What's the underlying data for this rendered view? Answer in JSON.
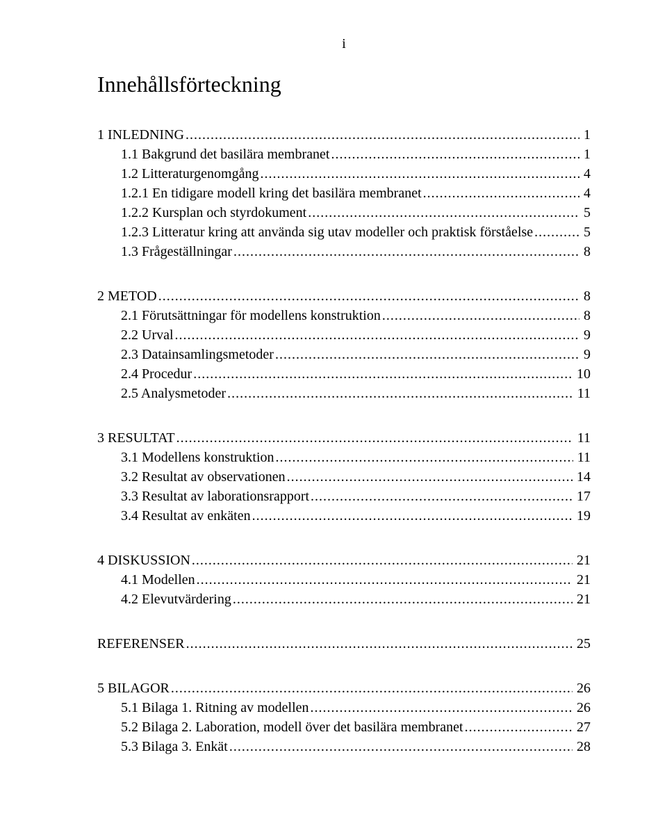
{
  "page_number": "i",
  "title": "Innehållsförteckning",
  "groups": [
    {
      "heading": {
        "label": "1 INLEDNING",
        "page": "1"
      },
      "children": [
        {
          "label": "1.1 Bakgrund det basilära membranet",
          "page": "1"
        },
        {
          "label": "1.2 Litteraturgenomgång",
          "page": "4"
        },
        {
          "label": "1.2.1 En tidigare modell kring det basilära membranet",
          "page": "4"
        },
        {
          "label": "1.2.2 Kursplan och styrdokument",
          "page": "5"
        },
        {
          "label": "1.2.3 Litteratur kring att använda sig utav modeller och praktisk förståelse",
          "page": "5"
        },
        {
          "label": "1.3 Frågeställningar",
          "page": "8"
        }
      ]
    },
    {
      "heading": {
        "label": "2 METOD",
        "page": "8"
      },
      "children": [
        {
          "label": "2.1 Förutsättningar för modellens konstruktion",
          "page": "8"
        },
        {
          "label": "2.2 Urval",
          "page": "9"
        },
        {
          "label": "2.3 Datainsamlingsmetoder",
          "page": "9"
        },
        {
          "label": "2.4 Procedur",
          "page": "10"
        },
        {
          "label": "2.5 Analysmetoder",
          "page": "11"
        }
      ]
    },
    {
      "heading": {
        "label": "3 RESULTAT",
        "page": "11"
      },
      "children": [
        {
          "label": "3.1 Modellens konstruktion",
          "page": "11"
        },
        {
          "label": "3.2 Resultat av observationen",
          "page": "14"
        },
        {
          "label": "3.3 Resultat av laborationsrapport",
          "page": "17"
        },
        {
          "label": "3.4 Resultat av enkäten",
          "page": "19"
        }
      ]
    },
    {
      "heading": {
        "label": "4 DISKUSSION",
        "page": "21"
      },
      "children": [
        {
          "label": "4.1 Modellen",
          "page": "21"
        },
        {
          "label": "4.2 Elevutvärdering",
          "page": "21"
        }
      ]
    },
    {
      "heading": {
        "label": "REFERENSER",
        "page": "25"
      },
      "children": []
    },
    {
      "heading": {
        "label": "5 BILAGOR",
        "page": "26"
      },
      "children": [
        {
          "label": "5.1 Bilaga 1. Ritning av modellen",
          "page": "26"
        },
        {
          "label": "5.2 Bilaga 2. Laboration, modell över det basilära membranet",
          "page": "27"
        },
        {
          "label": "5.3 Bilaga 3. Enkät",
          "page": "28"
        }
      ]
    }
  ]
}
